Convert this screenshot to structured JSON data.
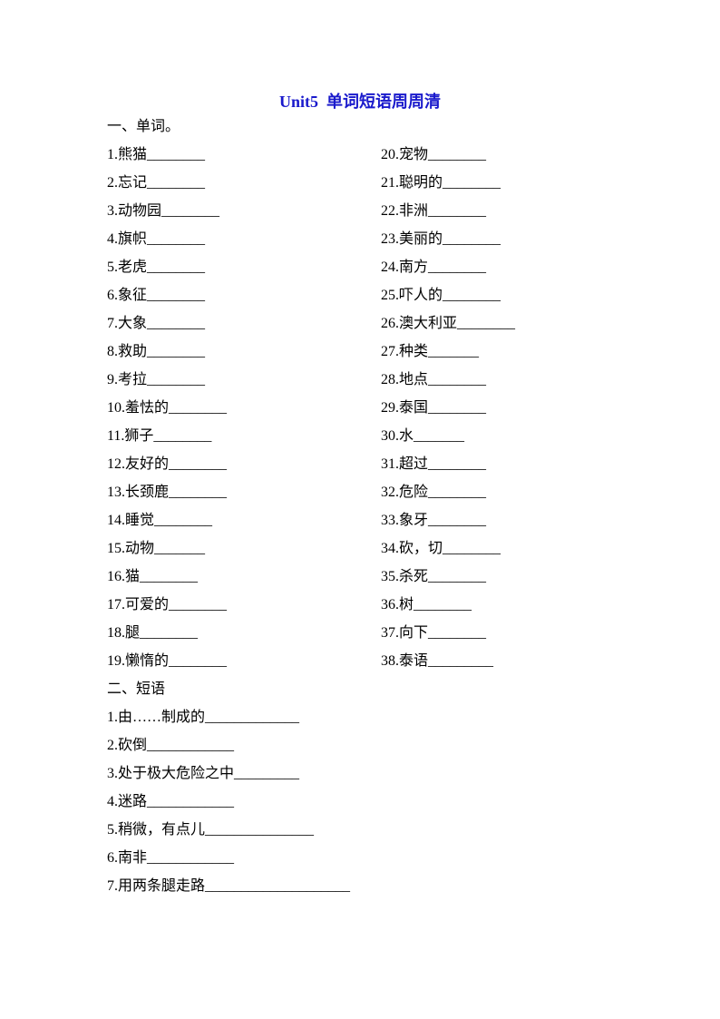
{
  "title": "Unit5  单词短语周周清",
  "title_color": "#1a1acc",
  "words": {
    "heading": "一、单词。",
    "items": [
      "1.熊猫________",
      "2.忘记________",
      "3.动物园________",
      "4.旗帜________",
      "5.老虎________",
      "6.象征________",
      "7.大象________",
      "8.救助________",
      "9.考拉________",
      "10.羞怯的________",
      "11.狮子________",
      "12.友好的________",
      "13.长颈鹿________",
      "14.睡觉________",
      "15.动物_______",
      "16.猫________",
      "17.可爱的________",
      "18.腿________",
      "19.懒惰的________",
      "20.宠物________",
      "21.聪明的________",
      "22.非洲________",
      "23.美丽的________",
      "24.南方________",
      "25.吓人的________",
      "26.澳大利亚________",
      "27.种类_______",
      "28.地点________",
      "29.泰国________",
      "30.水_______",
      "31.超过________",
      "32.危险________",
      "33.象牙________",
      "34.砍，切________",
      "35.杀死________",
      "36.树________",
      "37.向下________",
      "38.泰语_________"
    ]
  },
  "phrases": {
    "heading": "二、短语",
    "items": [
      "1.由……制成的_____________",
      "2.砍倒____________",
      "3.处于极大危险之中_________",
      "4.迷路____________",
      "5.稍微，有点儿_______________",
      "6.南非____________",
      "7.用两条腿走路____________________"
    ]
  }
}
